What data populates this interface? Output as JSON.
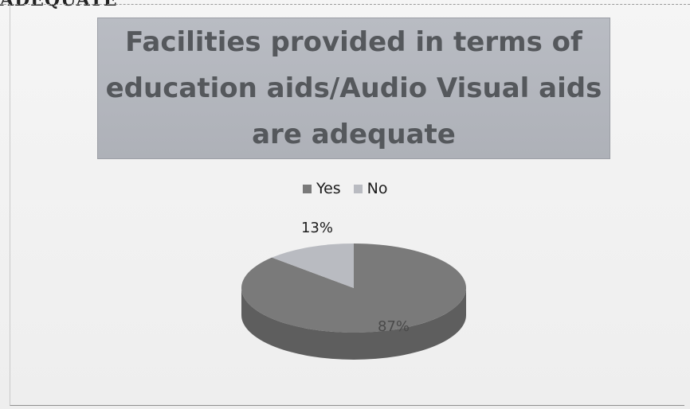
{
  "header": {
    "fragment": "ADEQUATE"
  },
  "chart_data": {
    "type": "pie",
    "title": "Facilities provided in terms of\neducation aids/Audio Visual aids\nare adequate",
    "categories": [
      "Yes",
      "No"
    ],
    "values": [
      87,
      13
    ],
    "value_labels": [
      "87%",
      "13%"
    ],
    "legend_position": "top",
    "colors": {
      "Yes": "#7a7a7a",
      "Yes_side": "#5e5e5e",
      "No": "#b9bbc1",
      "No_side": "#9a9ca1",
      "title_box": "#b3b6bd",
      "title_text": "#55585c"
    }
  }
}
